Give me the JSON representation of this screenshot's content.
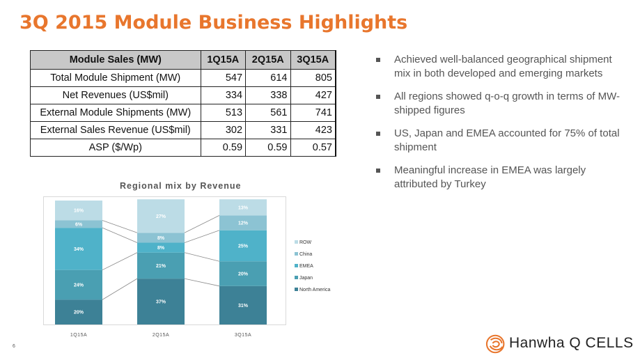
{
  "title": "3Q 2015 Module Business Highlights",
  "table": {
    "headers": [
      "Module Sales (MW)",
      "1Q15A",
      "2Q15A",
      "3Q15A"
    ],
    "rows": [
      [
        "Total Module Shipment (MW)",
        "547",
        "614",
        "805"
      ],
      [
        "Net Revenues (US$mil)",
        "334",
        "338",
        "427"
      ],
      [
        "External Module Shipments (MW)",
        "513",
        "561",
        "741"
      ],
      [
        "External Sales Revenue (US$mil)",
        "302",
        "331",
        "423"
      ],
      [
        "ASP ($/Wp)",
        "0.59",
        "0.59",
        "0.57"
      ]
    ]
  },
  "bullets": [
    "Achieved well-balanced geographical shipment mix in both developed and emerging markets",
    "All regions showed q-o-q growth in terms of MW-shipped figures",
    "US, Japan and EMEA accounted for 75% of total shipment",
    "Meaningful increase in EMEA was largely attributed by Turkey"
  ],
  "chart_data": {
    "type": "bar",
    "stacked": true,
    "title": "Regional mix by Revenue",
    "categories": [
      "1Q15A",
      "2Q15A",
      "3Q15A"
    ],
    "series": [
      {
        "name": "North America",
        "values": [
          20,
          37,
          31
        ],
        "color": "#3d8196"
      },
      {
        "name": "Japan",
        "values": [
          24,
          21,
          20
        ],
        "color": "#4a9fb2"
      },
      {
        "name": "EMEA",
        "values": [
          34,
          8,
          25
        ],
        "color": "#4fb2c9"
      },
      {
        "name": "China",
        "values": [
          6,
          8,
          12
        ],
        "color": "#8cc3d3"
      },
      {
        "name": "ROW",
        "values": [
          16,
          27,
          13
        ],
        "color": "#bcdce6"
      }
    ],
    "ylim": [
      0,
      100
    ],
    "legend_position": "right",
    "label_suffix": "%"
  },
  "page_number": "6",
  "logo": {
    "text": "Hanwha Q CELLS",
    "color": "#e8762d"
  }
}
